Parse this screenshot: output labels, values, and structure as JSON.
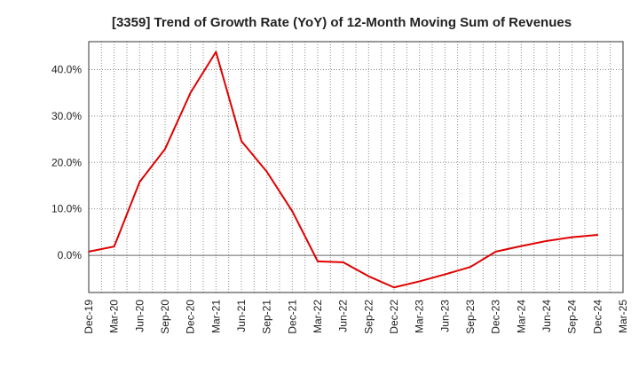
{
  "chart_data": {
    "type": "line",
    "title": "[3359]  Trend of Growth Rate (YoY) of 12-Month Moving Sum of Revenues",
    "xlabel": "",
    "ylabel": "",
    "y_unit": "%",
    "ylim": [
      -8,
      46
    ],
    "yticks": [
      0,
      10,
      20,
      30,
      40
    ],
    "ytick_labels": [
      "0.0%",
      "10.0%",
      "20.0%",
      "30.0%",
      "40.0%"
    ],
    "x_tick_labels": [
      "Dec-19",
      "Mar-20",
      "Jun-20",
      "Sep-20",
      "Dec-20",
      "Mar-21",
      "Jun-21",
      "Sep-21",
      "Dec-21",
      "Mar-22",
      "Jun-22",
      "Sep-22",
      "Dec-22",
      "Mar-23",
      "Jun-23",
      "Sep-23",
      "Dec-23",
      "Mar-24",
      "Jun-24",
      "Sep-24",
      "Dec-24",
      "Mar-25"
    ],
    "grid": true,
    "legend": "none",
    "series": [
      {
        "color": "#e00000",
        "points": [
          {
            "x": "Dec-19",
            "y": 0.8
          },
          {
            "x": "Mar-20",
            "y": 1.9
          },
          {
            "x": "Jun-20",
            "y": 15.8
          },
          {
            "x": "Sep-20",
            "y": 22.9
          },
          {
            "x": "Dec-20",
            "y": 35.0
          },
          {
            "x": "Mar-21",
            "y": 43.8
          },
          {
            "x": "Jun-21",
            "y": 24.6
          },
          {
            "x": "Sep-21",
            "y": 18.0
          },
          {
            "x": "Dec-21",
            "y": 9.5
          },
          {
            "x": "Mar-22",
            "y": -1.3
          },
          {
            "x": "Jun-22",
            "y": -1.5
          },
          {
            "x": "Sep-22",
            "y": -4.5
          },
          {
            "x": "Dec-22",
            "y": -6.9
          },
          {
            "x": "Mar-23",
            "y": -5.6
          },
          {
            "x": "Jun-23",
            "y": -4.1
          },
          {
            "x": "Sep-23",
            "y": -2.5
          },
          {
            "x": "Dec-23",
            "y": 0.8
          },
          {
            "x": "Mar-24",
            "y": 2.0
          },
          {
            "x": "Jun-24",
            "y": 3.1
          },
          {
            "x": "Sep-24",
            "y": 3.9
          },
          {
            "x": "Dec-24",
            "y": 4.4
          }
        ]
      }
    ]
  }
}
